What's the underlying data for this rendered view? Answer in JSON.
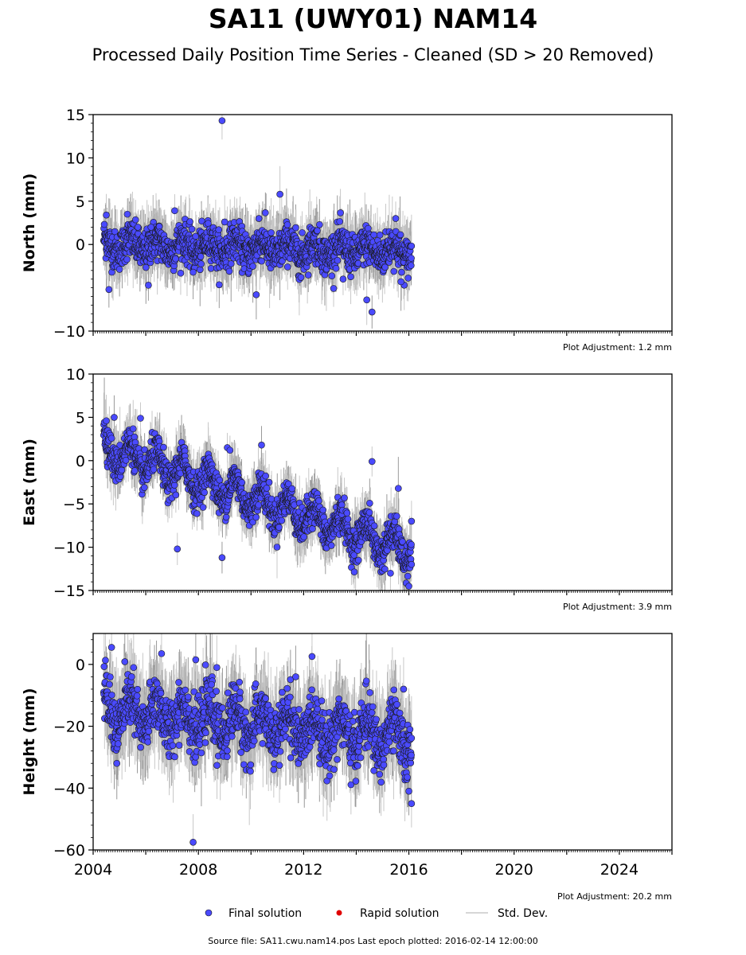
{
  "title": "SA11 (UWY01) NAM14",
  "subtitle": "Processed Daily Position Time Series - Cleaned (SD > 20 Removed)",
  "footer": "Source file: SA11.cwu.nam14.pos  Last epoch plotted: 2016-02-14 12:00:00",
  "legend": {
    "final_label": "Final solution",
    "rapid_label": "Rapid solution",
    "std_label": "Std. Dev.",
    "final_color": "#4a4aff",
    "rapid_color": "#e00000",
    "std_color": "#c8c8c8"
  },
  "chart_data": [
    {
      "type": "scatter",
      "ylabel": "North (mm)",
      "ylim": [
        -10,
        15
      ],
      "yticks": [
        "15",
        "10",
        "5",
        "0",
        "−10"
      ],
      "ytick_values": [
        15,
        10,
        5,
        0,
        -10
      ],
      "ytick_labels": [
        "15",
        "10",
        "5",
        "0",
        "−10"
      ],
      "xlim": [
        2004,
        2026
      ],
      "adjustment": "Plot Adjustment: 1.2 mm",
      "series": [
        {
          "trend": [
            [
              2004.4,
              0.0
            ],
            [
              2016.1,
              -0.8
            ]
          ],
          "seasonal_amplitude": 0.8,
          "scatter_sd": 1.1,
          "x": [
            2004.5,
            2004.6,
            2005.3,
            2005.7,
            2006.1,
            2006.2,
            2007.1,
            2007.8,
            2008.9,
            2009.0,
            2010.2,
            2010.3,
            2011.1,
            2011.9,
            2013.5,
            2014.4,
            2014.6,
            2014.9,
            2015.5,
            2015.7
          ],
          "y": [
            3.4,
            -5.2,
            3.5,
            2.0,
            -4.7,
            2.0,
            3.9,
            -3.2,
            14.3,
            2.6,
            -5.8,
            3.0,
            5.8,
            -3.8,
            -4.0,
            -6.4,
            -7.8,
            1.1,
            3.0,
            -4.3
          ]
        }
      ]
    },
    {
      "type": "scatter",
      "ylabel": "East (mm)",
      "ylim": [
        -15,
        10
      ],
      "ytick_values": [
        10,
        5,
        0,
        -5,
        -10,
        -15
      ],
      "ytick_labels": [
        "10",
        "5",
        "0",
        "−5",
        "−10",
        "−15"
      ],
      "xlim": [
        2004,
        2026
      ],
      "adjustment": "Plot Adjustment: 3.9 mm",
      "series": [
        {
          "trend": [
            [
              2004.4,
              1.5
            ],
            [
              2016.1,
              -10.5
            ]
          ],
          "seasonal_amplitude": 1.6,
          "scatter_sd": 1.0,
          "x": [
            2004.5,
            2004.8,
            2005.8,
            2007.2,
            2008.9,
            2009.1,
            2009.2,
            2010.4,
            2014.6,
            2015.3,
            2015.6,
            2016.0,
            2016.1
          ],
          "y": [
            4.6,
            5.0,
            4.9,
            -10.2,
            -11.2,
            1.5,
            1.2,
            1.8,
            -0.1,
            -13.0,
            -3.2,
            -14.5,
            -7.0
          ]
        }
      ]
    },
    {
      "type": "scatter",
      "ylabel": "Height (mm)",
      "ylim": [
        -60,
        10
      ],
      "ytick_values": [
        0,
        -20,
        -40,
        -60
      ],
      "ytick_labels": [
        "0",
        "−20",
        "−40",
        "−60"
      ],
      "xlim": [
        2004,
        2026
      ],
      "xtick_values": [
        2004,
        2008,
        2012,
        2016,
        2020,
        2024
      ],
      "xtick_labels": [
        "2004",
        "2008",
        "2012",
        "2016",
        "2020",
        "2024"
      ],
      "adjustment": "Plot Adjustment: 20.2 mm",
      "series": [
        {
          "trend": [
            [
              2004.4,
              -15.0
            ],
            [
              2016.1,
              -24.0
            ]
          ],
          "seasonal_amplitude": 5.0,
          "scatter_sd": 4.5,
          "x": [
            2004.7,
            2004.9,
            2006.6,
            2007.8,
            2007.9,
            2008.5,
            2008.7,
            2011.7,
            2015.8,
            2016.1,
            2016.0
          ],
          "y": [
            5.5,
            -32.0,
            3.5,
            -57.5,
            1.5,
            -6.5,
            -1.0,
            -4.0,
            -8.0,
            -45.0,
            -41.0
          ]
        }
      ]
    }
  ]
}
